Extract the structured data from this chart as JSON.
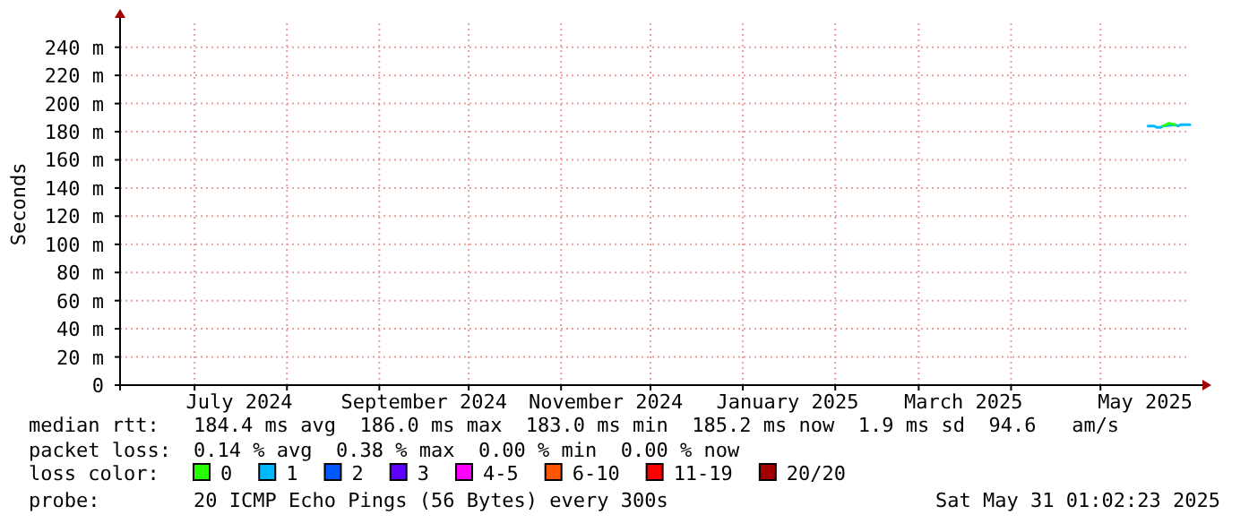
{
  "chart_data": {
    "type": "line",
    "ylabel": "Seconds",
    "legend_title": "loss color:",
    "legend": "bottom",
    "grid": true,
    "line_style": "solid",
    "xlim": [
      "2024-06-06",
      "2025-05-31"
    ],
    "xticks": [
      {
        "value": "2024-07-01",
        "label": null
      },
      {
        "value": "2024-07-16",
        "label": "July 2024"
      },
      {
        "value": "2024-08-01",
        "label": null
      },
      {
        "value": "2024-09-01",
        "label": null
      },
      {
        "value": "2024-09-16",
        "label": "September 2024"
      },
      {
        "value": "2024-10-01",
        "label": null
      },
      {
        "value": "2024-11-01",
        "label": null
      },
      {
        "value": "2024-11-16",
        "label": "November 2024"
      },
      {
        "value": "2024-12-01",
        "label": null
      },
      {
        "value": "2025-01-01",
        "label": null
      },
      {
        "value": "2025-01-16",
        "label": "January 2025"
      },
      {
        "value": "2025-02-01",
        "label": null
      },
      {
        "value": "2025-03-01",
        "label": null
      },
      {
        "value": "2025-03-16",
        "label": "March 2025"
      },
      {
        "value": "2025-04-01",
        "label": null
      },
      {
        "value": "2025-05-01",
        "label": null
      },
      {
        "value": "2025-05-16",
        "label": "May 2025"
      }
    ],
    "ylim": [
      0,
      257
    ],
    "yticks": [
      0,
      {
        "value": 20,
        "label": "20 m"
      },
      {
        "value": 40,
        "label": "40 m"
      },
      {
        "value": 60,
        "label": "60 m"
      },
      {
        "value": 80,
        "label": "80 m"
      },
      {
        "value": 100,
        "label": "100 m"
      },
      {
        "value": 120,
        "label": "120 m"
      },
      {
        "value": 140,
        "label": "140 m"
      },
      {
        "value": 160,
        "label": "160 m"
      },
      {
        "value": 180,
        "label": "180 m"
      },
      {
        "value": 200,
        "label": "200 m"
      },
      {
        "value": 220,
        "label": "220 m"
      },
      {
        "value": 240,
        "label": "240 m"
      }
    ],
    "series": [
      {
        "name": "0",
        "color": "#26ff00",
        "x": [
          "2025-05-22",
          "2025-05-24",
          "2025-05-26"
        ],
        "values": [
          184,
          186,
          185
        ]
      },
      {
        "name": "1",
        "color": "#00b8ff",
        "x": [
          "2025-05-17",
          "2025-05-18",
          "2025-05-19",
          "2025-05-20",
          "2025-05-21",
          "2025-05-22",
          "2025-05-26",
          "2025-05-27",
          "2025-05-28",
          "2025-05-29",
          "2025-05-30",
          "2025-05-31"
        ],
        "values": [
          184,
          184,
          184,
          183,
          183,
          184,
          185,
          184,
          185,
          185,
          185,
          185
        ]
      },
      {
        "name": "2",
        "color": "#0059ff"
      },
      {
        "name": "3",
        "color": "#5e00ff"
      },
      {
        "name": "4-5",
        "color": "#ff00ff"
      },
      {
        "name": "6-10",
        "color": "#ff5500"
      },
      {
        "name": "11-19",
        "color": "#ff0000"
      },
      {
        "name": "20/20",
        "color": "#a10000"
      }
    ],
    "annotations": [
      "median rtt:",
      "184.4 ms avg  186.0 ms max  183.0 ms min  185.2 ms now  1.9 ms sd  94.6   am/s",
      "packet loss:",
      "0.14 % avg  0.38 % max  0.00 % min  0.00 % now",
      "probe:",
      "20 ICMP Echo Pings (56 Bytes) every 300s",
      "Sat May 31 01:02:23 2025"
    ]
  }
}
